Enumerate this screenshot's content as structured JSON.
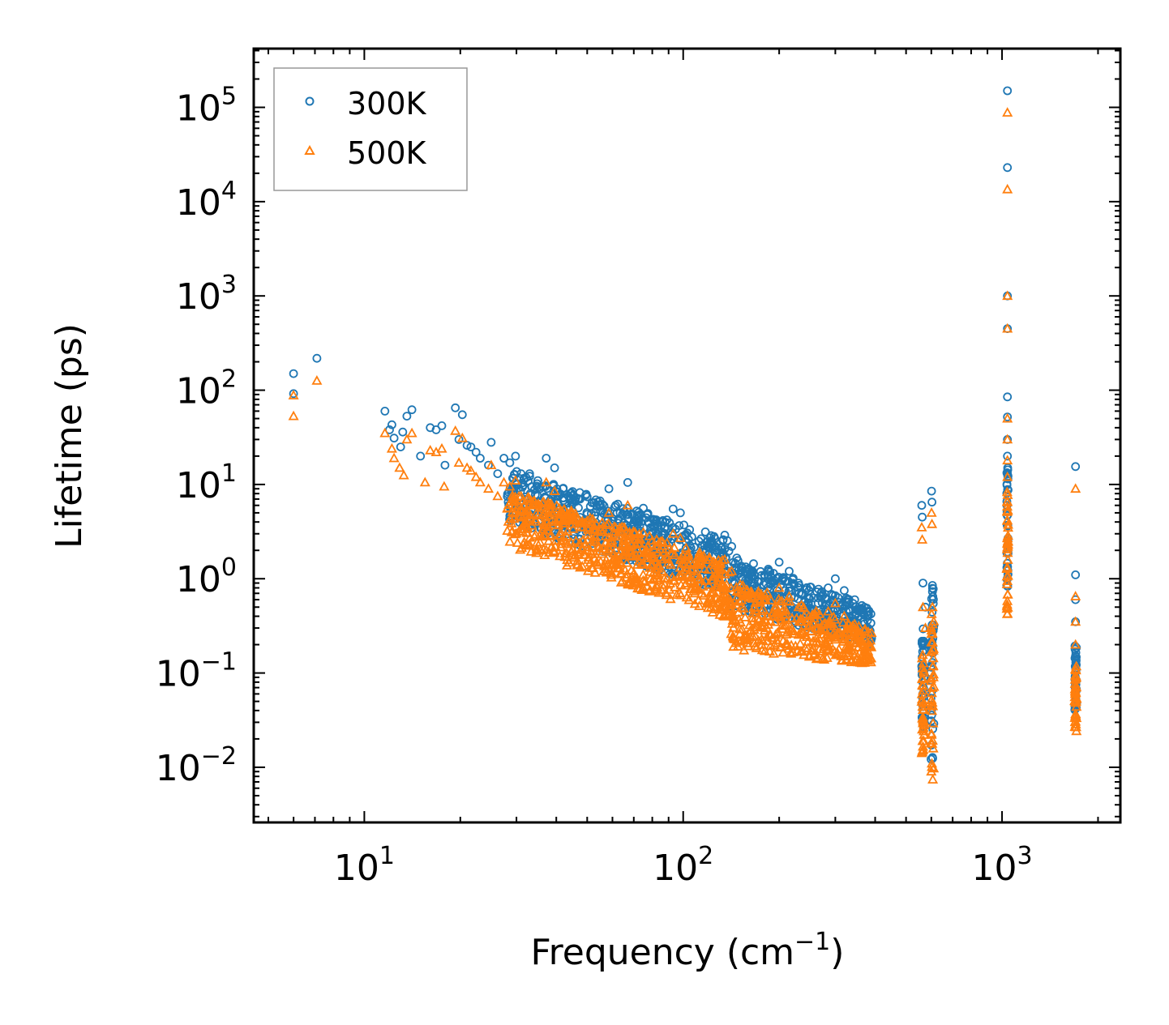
{
  "chart_data": {
    "type": "scatter",
    "xscale": "log",
    "yscale": "log",
    "xlabel": "Frequency (cm",
    "xlabel_sup": "−1",
    "xlabel_close": ")",
    "ylabel": "Lifetime (ps)",
    "xlim": [
      4.5,
      2350
    ],
    "ylim": [
      0.0026,
      420000
    ],
    "legend_position": "top-left",
    "x_ticks": [
      {
        "value": 10,
        "base": "10",
        "exp": "1"
      },
      {
        "value": 100,
        "base": "10",
        "exp": "2"
      },
      {
        "value": 1000,
        "base": "10",
        "exp": "3"
      }
    ],
    "y_ticks": [
      {
        "value": 0.01,
        "base": "10",
        "exp": "−2"
      },
      {
        "value": 0.1,
        "base": "10",
        "exp": "−1"
      },
      {
        "value": 1,
        "base": "10",
        "exp": "0"
      },
      {
        "value": 10,
        "base": "10",
        "exp": "1"
      },
      {
        "value": 100,
        "base": "10",
        "exp": "2"
      },
      {
        "value": 1000,
        "base": "10",
        "exp": "3"
      },
      {
        "value": 10000,
        "base": "10",
        "exp": "4"
      },
      {
        "value": 100000,
        "base": "10",
        "exp": "5"
      }
    ],
    "series": [
      {
        "name": "300K",
        "color": "#1f77b4",
        "marker": "circle",
        "points": [
          [
            6.0,
            150
          ],
          [
            6.0,
            92
          ],
          [
            7.1,
            218
          ],
          [
            11.6,
            60
          ],
          [
            12.2,
            43
          ],
          [
            12.0,
            38
          ],
          [
            12.4,
            31
          ],
          [
            13.0,
            25
          ],
          [
            13.6,
            53
          ],
          [
            14.1,
            62
          ],
          [
            13.2,
            36
          ],
          [
            15.0,
            20
          ],
          [
            16.1,
            40
          ],
          [
            16.8,
            38
          ],
          [
            17.5,
            42
          ],
          [
            17.9,
            16
          ],
          [
            19.3,
            65
          ],
          [
            19.8,
            30
          ],
          [
            20.3,
            55
          ],
          [
            21.0,
            26
          ],
          [
            21.6,
            25
          ],
          [
            22.4,
            22
          ],
          [
            23.1,
            19
          ],
          [
            24.5,
            16
          ],
          [
            25.0,
            28
          ],
          [
            26.2,
            13
          ],
          [
            27.4,
            19
          ],
          [
            28.6,
            17
          ],
          [
            29.8,
            20
          ],
          [
            31.0,
            13
          ],
          [
            33.0,
            13
          ],
          [
            35.0,
            11
          ],
          [
            37.2,
            19
          ],
          [
            39.5,
            15
          ],
          [
            42.0,
            9.0
          ],
          [
            45.0,
            7.6
          ],
          [
            47.5,
            7.0
          ],
          [
            50.0,
            7.4
          ],
          [
            52.5,
            6.4
          ],
          [
            55.0,
            6.0
          ],
          [
            58.5,
            9.0
          ],
          [
            62.0,
            5.0
          ],
          [
            67.0,
            10.5
          ],
          [
            71.0,
            4.1
          ],
          [
            75.0,
            5.6
          ],
          [
            80.0,
            3.1
          ],
          [
            87.0,
            2.9
          ],
          [
            93.0,
            5.5
          ],
          [
            98.0,
            5.0
          ],
          [
            104.0,
            2.6
          ],
          [
            112.0,
            2.5
          ],
          [
            125.0,
            2.8
          ],
          [
            135.0,
            2.9
          ],
          [
            142.0,
            2.2
          ],
          [
            153.0,
            1.3
          ],
          [
            165.0,
            1.2
          ],
          [
            180.0,
            1.1
          ],
          [
            200.0,
            1.5
          ],
          [
            215.0,
            1.2
          ],
          [
            230.0,
            0.9
          ],
          [
            248.0,
            0.75
          ],
          [
            265.0,
            0.55
          ],
          [
            285.0,
            0.8
          ],
          [
            300.0,
            1.0
          ],
          [
            320.0,
            0.75
          ],
          [
            345.0,
            0.6
          ],
          [
            370.0,
            0.5
          ],
          [
            380.0,
            0.3
          ],
          [
            388.0,
            0.22
          ],
          [
            560.0,
            6.0
          ],
          [
            562.0,
            4.5
          ],
          [
            565.0,
            0.9
          ],
          [
            575.0,
            0.5
          ],
          [
            601.0,
            8.5
          ],
          [
            603.0,
            6.5
          ],
          [
            605.0,
            0.85
          ],
          [
            610.0,
            0.3
          ],
          [
            1040.0,
            150000
          ],
          [
            1040.0,
            23000
          ],
          [
            1040.0,
            1000
          ],
          [
            1040.0,
            450
          ],
          [
            1040.0,
            85
          ],
          [
            1040.0,
            52
          ],
          [
            1040.0,
            30
          ],
          [
            1040.0,
            20
          ],
          [
            1700.0,
            15.5
          ],
          [
            1700.0,
            1.1
          ],
          [
            1700.0,
            0.6
          ],
          [
            1700.0,
            0.35
          ]
        ],
        "bands": [
          {
            "x": [
              28.0,
              140.0
            ],
            "y_high": [
              15.0,
              2.6
            ],
            "y_low": [
              4.0,
              0.7
            ]
          },
          {
            "x": [
              140.0,
              390.0
            ],
            "y_high": [
              1.8,
              0.5
            ],
            "y_low": [
              0.5,
              0.2
            ]
          },
          {
            "x": [
              560.0,
              570.0
            ],
            "y_high": [
              0.3,
              0.3
            ],
            "y_low": [
              0.025,
              0.025
            ]
          },
          {
            "x": [
              598.0,
              612.0
            ],
            "y_high": [
              0.8,
              0.8
            ],
            "y_low": [
              0.012,
              0.012
            ]
          },
          {
            "x": [
              1035.0,
              1045.0
            ],
            "y_high": [
              15.0,
              15.0
            ],
            "y_low": [
              0.7,
              0.7
            ]
          },
          {
            "x": [
              1690.0,
              1712.0
            ],
            "y_high": [
              0.2,
              0.2
            ],
            "y_low": [
              0.04,
              0.04
            ]
          }
        ]
      },
      {
        "name": "500K",
        "color": "#ff7f0e",
        "marker": "triangle",
        "points": [
          [
            6.0,
            88
          ],
          [
            6.0,
            53
          ],
          [
            7.1,
            126
          ],
          [
            11.6,
            35
          ],
          [
            12.2,
            24
          ],
          [
            12.4,
            19
          ],
          [
            12.9,
            15
          ],
          [
            13.3,
            12.5
          ],
          [
            13.6,
            30
          ],
          [
            14.1,
            35
          ],
          [
            15.5,
            10.5
          ],
          [
            16.1,
            23
          ],
          [
            16.8,
            22
          ],
          [
            17.5,
            24
          ],
          [
            17.8,
            9.5
          ],
          [
            19.3,
            37
          ],
          [
            19.8,
            17
          ],
          [
            20.3,
            31
          ],
          [
            21.0,
            15
          ],
          [
            21.6,
            14
          ],
          [
            22.4,
            12
          ],
          [
            23.1,
            10.5
          ],
          [
            24.5,
            9.0
          ],
          [
            25.0,
            16
          ],
          [
            26.2,
            7.5
          ],
          [
            27.4,
            10.5
          ],
          [
            28.6,
            9.5
          ],
          [
            29.8,
            11
          ],
          [
            31.0,
            7.5
          ],
          [
            33.0,
            7.0
          ],
          [
            35.0,
            6.0
          ],
          [
            37.2,
            10.5
          ],
          [
            39.5,
            8.5
          ],
          [
            42.0,
            5.0
          ],
          [
            45.0,
            4.2
          ],
          [
            47.5,
            3.9
          ],
          [
            50.0,
            4.1
          ],
          [
            52.5,
            3.6
          ],
          [
            55.0,
            3.3
          ],
          [
            58.5,
            5.0
          ],
          [
            62.0,
            2.8
          ],
          [
            67.0,
            6.0
          ],
          [
            71.0,
            2.3
          ],
          [
            75.0,
            3.1
          ],
          [
            80.0,
            1.7
          ],
          [
            87.0,
            1.6
          ],
          [
            93.0,
            3.0
          ],
          [
            98.0,
            2.7
          ],
          [
            104.0,
            1.4
          ],
          [
            112.0,
            1.4
          ],
          [
            125.0,
            1.5
          ],
          [
            135.0,
            1.6
          ],
          [
            142.0,
            1.2
          ],
          [
            153.0,
            0.7
          ],
          [
            165.0,
            0.65
          ],
          [
            180.0,
            0.6
          ],
          [
            200.0,
            0.8
          ],
          [
            215.0,
            0.65
          ],
          [
            230.0,
            0.5
          ],
          [
            248.0,
            0.4
          ],
          [
            265.0,
            0.3
          ],
          [
            285.0,
            0.45
          ],
          [
            300.0,
            0.55
          ],
          [
            320.0,
            0.4
          ],
          [
            345.0,
            0.33
          ],
          [
            370.0,
            0.28
          ],
          [
            380.0,
            0.17
          ],
          [
            388.0,
            0.13
          ],
          [
            560.0,
            3.5
          ],
          [
            562.0,
            2.6
          ],
          [
            565.0,
            0.5
          ],
          [
            575.0,
            0.3
          ],
          [
            601.0,
            5.0
          ],
          [
            603.0,
            3.8
          ],
          [
            605.0,
            0.5
          ],
          [
            610.0,
            0.18
          ],
          [
            1040.0,
            88000
          ],
          [
            1040.0,
            13500
          ],
          [
            1040.0,
            1000
          ],
          [
            1040.0,
            450
          ],
          [
            1040.0,
            50
          ],
          [
            1040.0,
            30
          ],
          [
            1040.0,
            18
          ],
          [
            1040.0,
            12
          ],
          [
            1700.0,
            9.0
          ],
          [
            1700.0,
            0.65
          ],
          [
            1700.0,
            0.35
          ],
          [
            1700.0,
            0.2
          ]
        ],
        "bands": [
          {
            "x": [
              28.0,
              140.0
            ],
            "y_high": [
              9.0,
              1.5
            ],
            "y_low": [
              2.2,
              0.38
            ]
          },
          {
            "x": [
              140.0,
              390.0
            ],
            "y_high": [
              1.0,
              0.28
            ],
            "y_low": [
              0.18,
              0.12
            ]
          },
          {
            "x": [
              560.0,
              570.0
            ],
            "y_high": [
              0.18,
              0.18
            ],
            "y_low": [
              0.014,
              0.014
            ]
          },
          {
            "x": [
              598.0,
              612.0
            ],
            "y_high": [
              0.45,
              0.45
            ],
            "y_low": [
              0.0068,
              0.0068
            ]
          },
          {
            "x": [
              1035.0,
              1045.0
            ],
            "y_high": [
              9.0,
              9.0
            ],
            "y_low": [
              0.38,
              0.38
            ]
          },
          {
            "x": [
              1690.0,
              1712.0
            ],
            "y_high": [
              0.12,
              0.12
            ],
            "y_low": [
              0.024,
              0.024
            ]
          }
        ]
      }
    ]
  }
}
